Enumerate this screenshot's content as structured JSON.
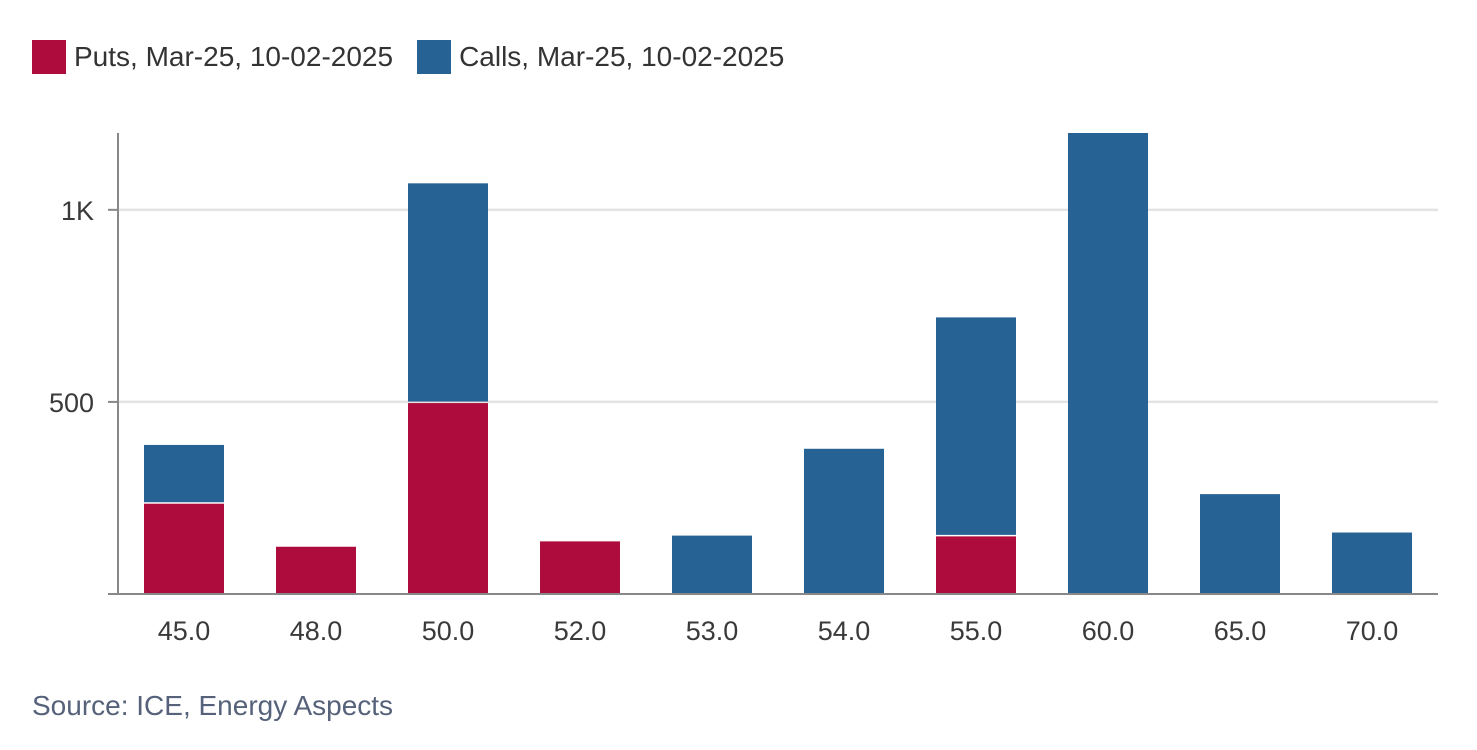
{
  "chart_data": {
    "type": "bar",
    "stacked": true,
    "categories": [
      "45.0",
      "48.0",
      "50.0",
      "52.0",
      "53.0",
      "54.0",
      "55.0",
      "60.0",
      "65.0",
      "70.0"
    ],
    "series": [
      {
        "name": "Puts, Mar-25, 10-02-2025",
        "color": "#ad0c3c",
        "values": [
          235,
          123,
          497,
          137,
          0,
          0,
          150,
          0,
          0,
          0
        ]
      },
      {
        "name": "Calls, Mar-25, 10-02-2025",
        "color": "#266294",
        "values": [
          153,
          0,
          572,
          0,
          152,
          378,
          570,
          1200,
          260,
          160
        ]
      }
    ],
    "ylim": [
      0,
      1200
    ],
    "yticks": [
      500,
      1000
    ],
    "ytick_labels": [
      "500",
      "1K"
    ],
    "grid": true,
    "legend_position": "top-left",
    "title": "",
    "xlabel": "",
    "ylabel": ""
  },
  "source": "Source: ICE, Energy Aspects"
}
